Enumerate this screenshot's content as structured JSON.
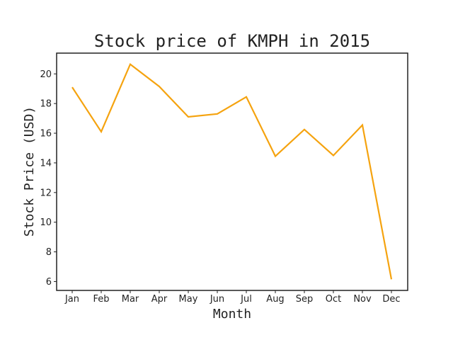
{
  "chart_data": {
    "type": "line",
    "title": "Stock price of KMPH in 2015",
    "xlabel": "Month",
    "ylabel": "Stock Price (USD)",
    "categories": [
      "Jan",
      "Feb",
      "Mar",
      "Apr",
      "May",
      "Jun",
      "Jul",
      "Aug",
      "Sep",
      "Oct",
      "Nov",
      "Dec"
    ],
    "series": [
      {
        "values": [
          19.1,
          16.1,
          20.65,
          19.15,
          17.1,
          17.3,
          18.45,
          14.45,
          16.25,
          14.5,
          16.55,
          6.15
        ],
        "color": "#f5a30f"
      }
    ],
    "ylim": [
      5.4,
      21.4
    ],
    "yticks": [
      6,
      8,
      10,
      12,
      14,
      16,
      18,
      20
    ],
    "grid": false,
    "legend": "none"
  }
}
